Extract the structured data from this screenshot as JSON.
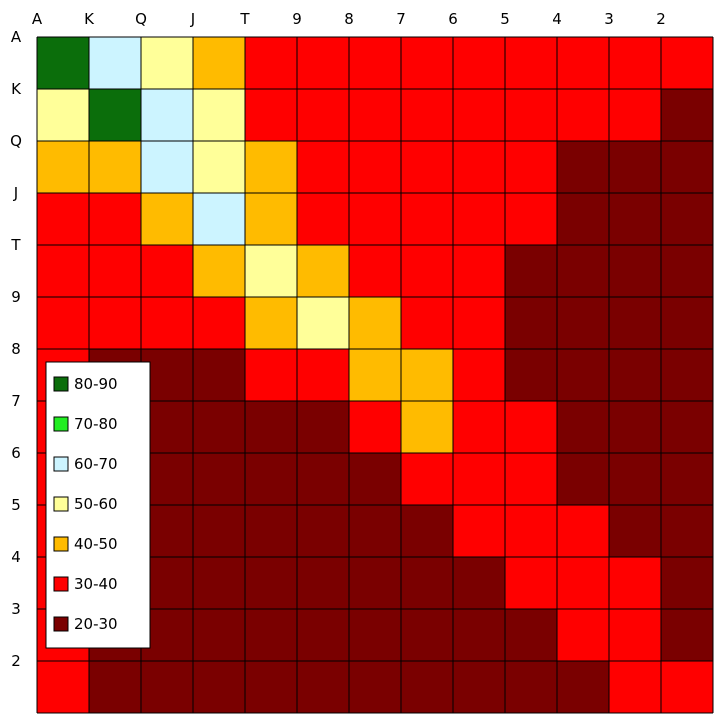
{
  "chart_data": {
    "type": "heatmap",
    "title": "",
    "xlabel": "",
    "ylabel": "",
    "x_categories": [
      "A",
      "K",
      "Q",
      "J",
      "T",
      "9",
      "8",
      "7",
      "6",
      "5",
      "4",
      "3",
      "2"
    ],
    "y_categories": [
      "A",
      "K",
      "Q",
      "J",
      "T",
      "9",
      "8",
      "7",
      "6",
      "5",
      "4",
      "3",
      "2"
    ],
    "grid": true,
    "legend_position": "left",
    "legend": [
      {
        "label": "80-90",
        "color": "#0b6e0b"
      },
      {
        "label": "70-80",
        "color": "#22ee22"
      },
      {
        "label": "60-70",
        "color": "#ccf4ff"
      },
      {
        "label": "50-60",
        "color": "#ffff99"
      },
      {
        "label": "40-50",
        "color": "#ffbb00"
      },
      {
        "label": "30-40",
        "color": "#ff0000"
      },
      {
        "label": "20-30",
        "color": "#7a0000"
      }
    ],
    "values": [
      [
        85,
        68,
        58,
        48,
        35,
        35,
        35,
        35,
        35,
        35,
        35,
        35,
        35
      ],
      [
        56,
        82,
        65,
        52,
        38,
        35,
        35,
        35,
        35,
        35,
        35,
        32,
        28
      ],
      [
        42,
        45,
        68,
        58,
        45,
        35,
        35,
        35,
        35,
        32,
        28,
        25,
        25
      ],
      [
        35,
        38,
        45,
        62,
        48,
        35,
        35,
        35,
        35,
        30,
        27,
        25,
        25
      ],
      [
        35,
        35,
        38,
        48,
        58,
        42,
        35,
        35,
        35,
        28,
        25,
        25,
        25
      ],
      [
        35,
        35,
        32,
        35,
        42,
        55,
        42,
        35,
        35,
        27,
        25,
        25,
        25
      ],
      [
        35,
        28,
        26,
        28,
        32,
        36,
        48,
        42,
        35,
        28,
        25,
        25,
        25
      ],
      [
        35,
        27,
        25,
        25,
        25,
        28,
        35,
        45,
        35,
        30,
        25,
        25,
        25
      ],
      [
        35,
        25,
        25,
        25,
        25,
        25,
        28,
        35,
        35,
        33,
        28,
        25,
        25
      ],
      [
        35,
        25,
        25,
        25,
        25,
        25,
        25,
        28,
        35,
        35,
        33,
        26,
        25
      ],
      [
        35,
        25,
        25,
        25,
        25,
        25,
        25,
        25,
        28,
        35,
        35,
        30,
        26
      ],
      [
        34,
        25,
        25,
        25,
        25,
        25,
        25,
        25,
        25,
        28,
        35,
        34,
        28
      ],
      [
        32,
        25,
        25,
        25,
        25,
        25,
        25,
        25,
        25,
        25,
        28,
        35,
        34
      ]
    ]
  }
}
